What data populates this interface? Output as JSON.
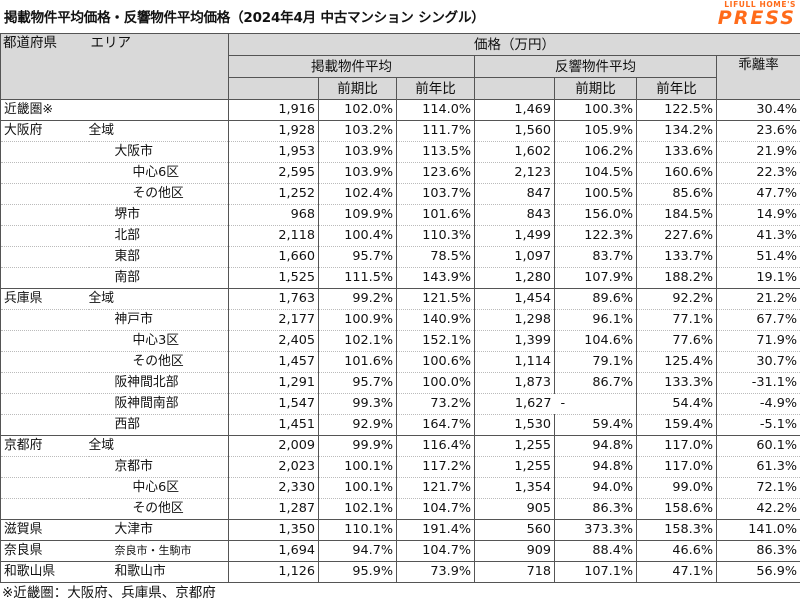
{
  "title": "掲載物件平均価格・反響物件平均価格（2024年4月 中古マンション シングル）",
  "logo": {
    "top": "LIFULL HOME'S",
    "main": "PRESS"
  },
  "header": {
    "pref_col": "都道府県",
    "area_col": "エリア",
    "price_group": "価格（万円）",
    "listing_avg": "掲載物件平均",
    "response_avg": "反響物件平均",
    "qoq": "前期比",
    "yoy": "前年比",
    "gap": "乖離率"
  },
  "rows": [
    {
      "pref": "近畿圏※",
      "area": "",
      "level": 0,
      "l_price": "1,916",
      "l_qoq": "102.0%",
      "l_yoy": "114.0%",
      "r_price": "1,469",
      "r_qoq": "100.3%",
      "r_yoy": "122.5%",
      "gap": "30.4%",
      "group_start": true,
      "group_end": true
    },
    {
      "pref": "大阪府",
      "area": "全域",
      "level": 1,
      "l_price": "1,928",
      "l_qoq": "103.2%",
      "l_yoy": "111.7%",
      "r_price": "1,560",
      "r_qoq": "105.9%",
      "r_yoy": "134.2%",
      "gap": "23.6%",
      "group_start": true
    },
    {
      "pref": "",
      "area": "大阪市",
      "level": 2,
      "l_price": "1,953",
      "l_qoq": "103.9%",
      "l_yoy": "113.5%",
      "r_price": "1,602",
      "r_qoq": "106.2%",
      "r_yoy": "133.6%",
      "gap": "21.9%"
    },
    {
      "pref": "",
      "area": "中心6区",
      "level": 3,
      "l_price": "2,595",
      "l_qoq": "103.9%",
      "l_yoy": "123.6%",
      "r_price": "2,123",
      "r_qoq": "104.5%",
      "r_yoy": "160.6%",
      "gap": "22.3%"
    },
    {
      "pref": "",
      "area": "その他区",
      "level": 3,
      "l_price": "1,252",
      "l_qoq": "102.4%",
      "l_yoy": "103.7%",
      "r_price": "847",
      "r_qoq": "100.5%",
      "r_yoy": "85.6%",
      "gap": "47.7%"
    },
    {
      "pref": "",
      "area": "堺市",
      "level": 2,
      "l_price": "968",
      "l_qoq": "109.9%",
      "l_yoy": "101.6%",
      "r_price": "843",
      "r_qoq": "156.0%",
      "r_yoy": "184.5%",
      "gap": "14.9%"
    },
    {
      "pref": "",
      "area": "北部",
      "level": 2,
      "l_price": "2,118",
      "l_qoq": "100.4%",
      "l_yoy": "110.3%",
      "r_price": "1,499",
      "r_qoq": "122.3%",
      "r_yoy": "227.6%",
      "gap": "41.3%"
    },
    {
      "pref": "",
      "area": "東部",
      "level": 2,
      "l_price": "1,660",
      "l_qoq": "95.7%",
      "l_yoy": "78.5%",
      "r_price": "1,097",
      "r_qoq": "83.7%",
      "r_yoy": "133.7%",
      "gap": "51.4%"
    },
    {
      "pref": "",
      "area": "南部",
      "level": 2,
      "l_price": "1,525",
      "l_qoq": "111.5%",
      "l_yoy": "143.9%",
      "r_price": "1,280",
      "r_qoq": "107.9%",
      "r_yoy": "188.2%",
      "gap": "19.1%",
      "group_end": true
    },
    {
      "pref": "兵庫県",
      "area": "全域",
      "level": 1,
      "l_price": "1,763",
      "l_qoq": "99.2%",
      "l_yoy": "121.5%",
      "r_price": "1,454",
      "r_qoq": "89.6%",
      "r_yoy": "92.2%",
      "gap": "21.2%",
      "group_start": true
    },
    {
      "pref": "",
      "area": "神戸市",
      "level": 2,
      "l_price": "2,177",
      "l_qoq": "100.9%",
      "l_yoy": "140.9%",
      "r_price": "1,298",
      "r_qoq": "96.1%",
      "r_yoy": "77.1%",
      "gap": "67.7%"
    },
    {
      "pref": "",
      "area": "中心3区",
      "level": 3,
      "l_price": "2,405",
      "l_qoq": "102.1%",
      "l_yoy": "152.1%",
      "r_price": "1,399",
      "r_qoq": "104.6%",
      "r_yoy": "77.6%",
      "gap": "71.9%"
    },
    {
      "pref": "",
      "area": "その他区",
      "level": 3,
      "l_price": "1,457",
      "l_qoq": "101.6%",
      "l_yoy": "100.6%",
      "r_price": "1,114",
      "r_qoq": "79.1%",
      "r_yoy": "125.4%",
      "gap": "30.7%"
    },
    {
      "pref": "",
      "area": "阪神間北部",
      "level": 2,
      "l_price": "1,291",
      "l_qoq": "95.7%",
      "l_yoy": "100.0%",
      "r_price": "1,873",
      "r_qoq": "86.7%",
      "r_yoy": "133.3%",
      "gap": "-31.1%"
    },
    {
      "pref": "",
      "area": "阪神間南部",
      "level": 2,
      "l_price": "1,547",
      "l_qoq": "99.3%",
      "l_yoy": "73.2%",
      "r_price": "1,627",
      "r_qoq": "-",
      "r_yoy": "54.4%",
      "gap": "-4.9%",
      "dash": true
    },
    {
      "pref": "",
      "area": "西部",
      "level": 2,
      "l_price": "1,451",
      "l_qoq": "92.9%",
      "l_yoy": "164.7%",
      "r_price": "1,530",
      "r_qoq": "59.4%",
      "r_yoy": "159.4%",
      "gap": "-5.1%",
      "group_end": true
    },
    {
      "pref": "京都府",
      "area": "全域",
      "level": 1,
      "l_price": "2,009",
      "l_qoq": "99.9%",
      "l_yoy": "116.4%",
      "r_price": "1,255",
      "r_qoq": "94.8%",
      "r_yoy": "117.0%",
      "gap": "60.1%",
      "group_start": true
    },
    {
      "pref": "",
      "area": "京都市",
      "level": 2,
      "l_price": "2,023",
      "l_qoq": "100.1%",
      "l_yoy": "117.2%",
      "r_price": "1,255",
      "r_qoq": "94.8%",
      "r_yoy": "117.0%",
      "gap": "61.3%"
    },
    {
      "pref": "",
      "area": "中心6区",
      "level": 3,
      "l_price": "2,330",
      "l_qoq": "100.1%",
      "l_yoy": "121.7%",
      "r_price": "1,354",
      "r_qoq": "94.0%",
      "r_yoy": "99.0%",
      "gap": "72.1%"
    },
    {
      "pref": "",
      "area": "その他区",
      "level": 3,
      "l_price": "1,287",
      "l_qoq": "102.1%",
      "l_yoy": "104.7%",
      "r_price": "905",
      "r_qoq": "86.3%",
      "r_yoy": "158.6%",
      "gap": "42.2%",
      "group_end": true
    },
    {
      "pref": "滋賀県",
      "area": "大津市",
      "level": 2,
      "l_price": "1,350",
      "l_qoq": "110.1%",
      "l_yoy": "191.4%",
      "r_price": "560",
      "r_qoq": "373.3%",
      "r_yoy": "158.3%",
      "gap": "141.0%",
      "group_start": true,
      "group_end": true
    },
    {
      "pref": "奈良県",
      "area": "奈良市・生駒市",
      "level": 2,
      "small": true,
      "l_price": "1,694",
      "l_qoq": "94.7%",
      "l_yoy": "104.7%",
      "r_price": "909",
      "r_qoq": "88.4%",
      "r_yoy": "46.6%",
      "gap": "86.3%",
      "group_start": true,
      "group_end": true
    },
    {
      "pref": "和歌山県",
      "area": "和歌山市",
      "level": 2,
      "l_price": "1,126",
      "l_qoq": "95.9%",
      "l_yoy": "73.9%",
      "r_price": "718",
      "r_qoq": "107.1%",
      "r_yoy": "47.1%",
      "gap": "56.9%",
      "group_start": true,
      "group_end": true
    }
  ],
  "footnote": "※近畿圏：大阪府、兵庫県、京都府"
}
